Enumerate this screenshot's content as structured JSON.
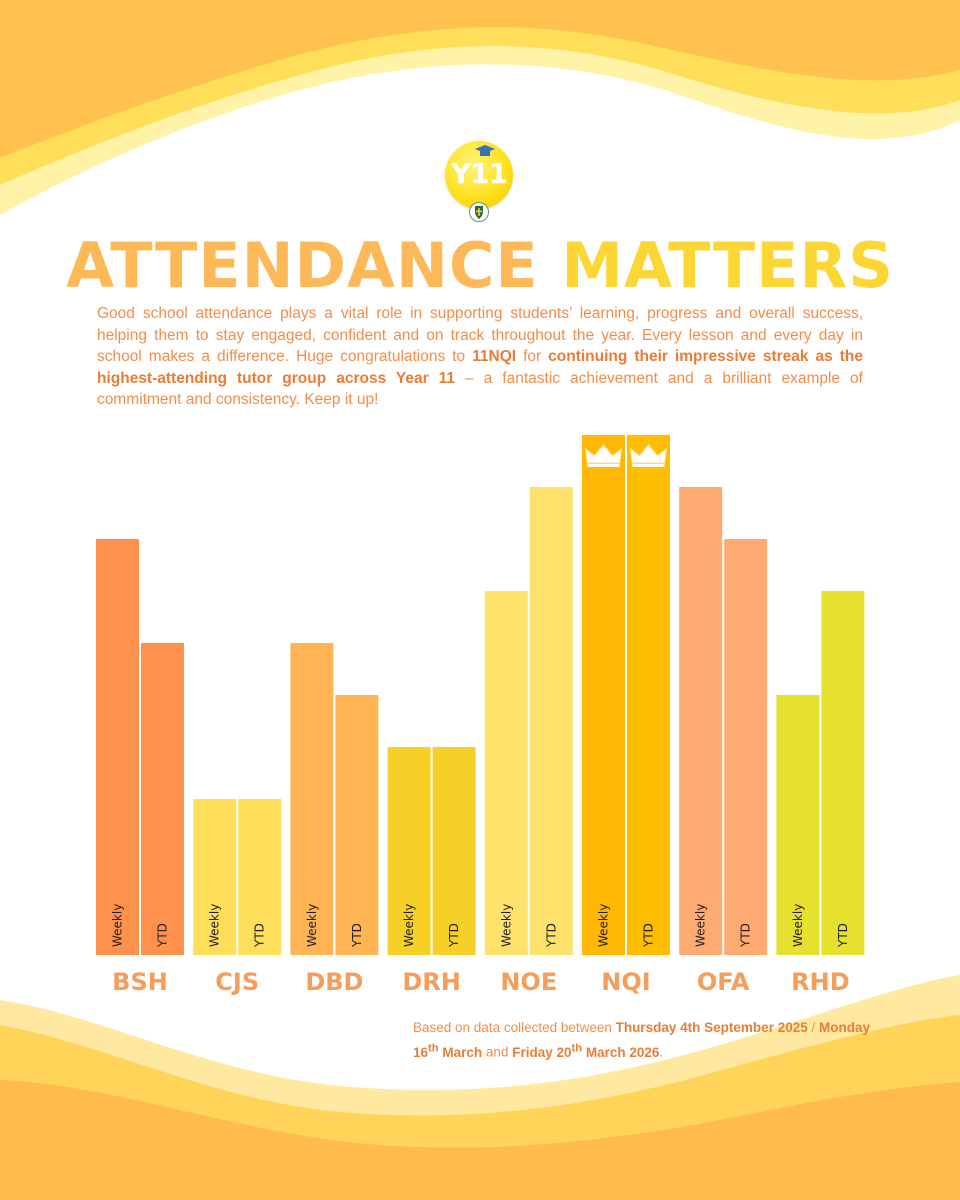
{
  "logo": {
    "text": "Y11"
  },
  "title": {
    "part1": "ATTENDANCE",
    "part2": "MATTERS"
  },
  "intro": {
    "part1": "Good school attendance plays a vital role in supporting students’ learning, progress and overall success, helping them to stay engaged, confident and on track throughout the year. Every lesson and every day in school makes a difference. Huge congratulations to ",
    "group": "11NQI",
    "part2": " for ",
    "highlight": "continuing their impressive streak as the highest-attending tutor group across Year 11",
    "part3": " – a fantastic achievement and a brilliant example of commitment and consistency. Keep it up!"
  },
  "footnote": {
    "prefix": "Based on data collected between ",
    "date1": "Thursday 4th September 2025",
    "sep": " / ",
    "date2_day": "Monday 16",
    "date2_sup": "th",
    "date2_month": " March",
    "and": " and ",
    "date3_day": "Friday 20",
    "date3_sup": "th",
    "date3_month": " March 2026",
    "end": "."
  },
  "colors": {
    "title1": "#fdb858",
    "title2": "#fbd635",
    "text": "#f28d49",
    "groupLabel": "#f59d5a"
  },
  "chart_data": {
    "type": "bar",
    "title": "ATTENDANCE MATTERS",
    "categories": [
      "BSH",
      "CJS",
      "DBD",
      "DRH",
      "NOE",
      "NQI",
      "OFA",
      "RHD"
    ],
    "series": [
      {
        "name": "Weekly",
        "values": [
          8,
          3,
          6,
          4,
          7,
          10,
          9,
          5
        ]
      },
      {
        "name": "YTD",
        "values": [
          6,
          3,
          5,
          4,
          9,
          10,
          8,
          7
        ]
      }
    ],
    "group_colors": [
      [
        "#ff914d",
        "#ff914d"
      ],
      [
        "#ffde59",
        "#ffde59"
      ],
      [
        "#ffb554",
        "#ffb554"
      ],
      [
        "#f6d026",
        "#f6d026"
      ],
      [
        "#ffe26c",
        "#ffe26c"
      ],
      [
        "#ffb703",
        "#ffbd00"
      ],
      [
        "#ffaa70",
        "#ffaa70"
      ],
      [
        "#e5e12e",
        "#e5e12e"
      ]
    ],
    "highlight": "NQI",
    "ylabel": "",
    "xlabel": "",
    "ylim": [
      0,
      10
    ]
  }
}
